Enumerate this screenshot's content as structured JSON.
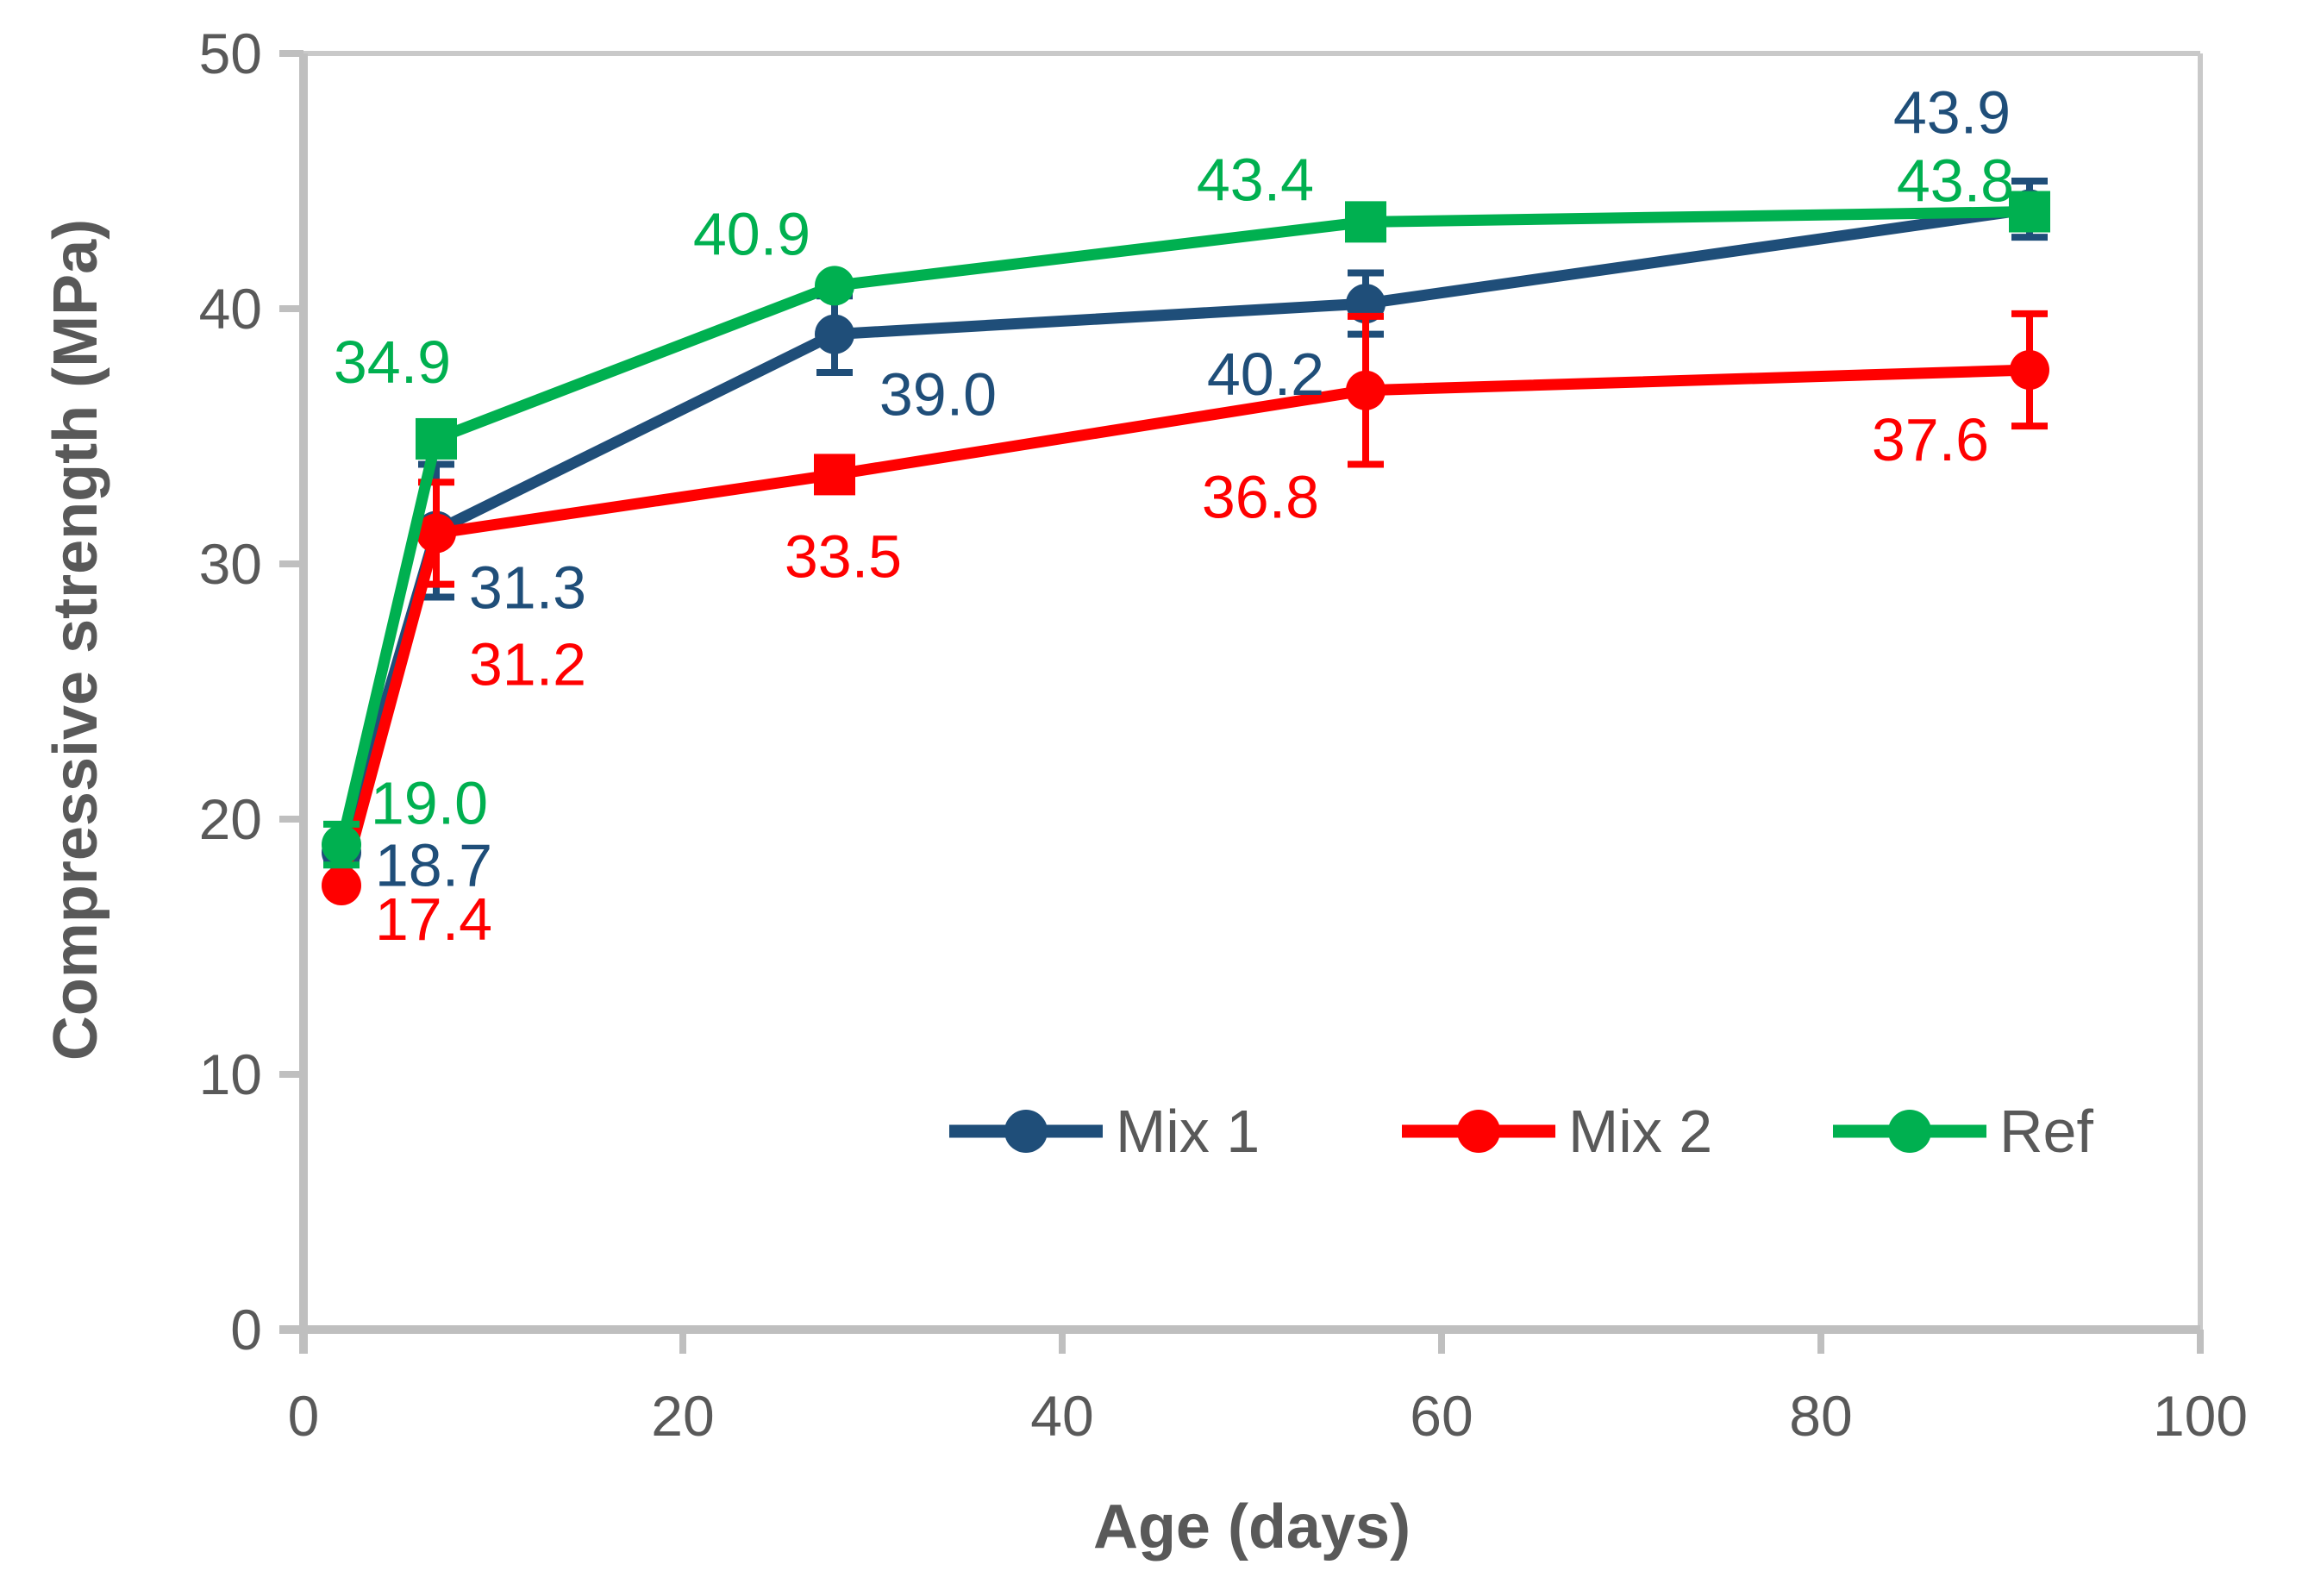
{
  "chart_data": {
    "type": "line",
    "title": "",
    "xlabel": "Age (days)",
    "ylabel": "Compressive strength (MPa)",
    "x": [
      2,
      7,
      28,
      56,
      91
    ],
    "xlim": [
      0,
      100
    ],
    "ylim": [
      0,
      50
    ],
    "x_ticks": [
      0,
      20,
      40,
      60,
      80,
      100
    ],
    "y_ticks": [
      0,
      10,
      20,
      30,
      40,
      50
    ],
    "grid": false,
    "legend_position": "inside-bottom-center",
    "series": [
      {
        "name": "Mix 1",
        "color": "#1F4E79",
        "values": [
          18.7,
          31.3,
          39.0,
          40.2,
          43.9
        ],
        "data_labels": [
          "18.7",
          "31.3",
          "39.0",
          "40.2",
          "43.9"
        ],
        "error_bars": [
          0.45,
          2.6,
          1.5,
          1.2,
          1.1
        ],
        "markers": [
          "circle",
          "circle",
          "circle",
          "circle",
          "circle"
        ],
        "label_offsets": [
          [
            107,
            15
          ],
          [
            106,
            66
          ],
          [
            120,
            70
          ],
          [
            -116,
            82
          ],
          [
            -90,
            -112
          ]
        ]
      },
      {
        "name": "Mix 2",
        "color": "#FF0000",
        "values": [
          17.4,
          31.2,
          33.5,
          36.8,
          37.6
        ],
        "data_labels": [
          "17.4",
          "31.2",
          "33.5",
          "36.8",
          "37.6"
        ],
        "error_bars": [
          0,
          2.0,
          0,
          2.9,
          2.2
        ],
        "markers": [
          "circle",
          "circle",
          "square",
          "circle",
          "circle"
        ],
        "label_offsets": [
          [
            107,
            39
          ],
          [
            106,
            152
          ],
          [
            10,
            95
          ],
          [
            -122,
            124
          ],
          [
            -115,
            81
          ]
        ]
      },
      {
        "name": "Ref",
        "color": "#00B050",
        "values": [
          19.0,
          34.9,
          40.9,
          43.4,
          43.8
        ],
        "data_labels": [
          "19.0",
          "34.9",
          "40.9",
          "43.4",
          "43.8"
        ],
        "error_bars": [
          0.8,
          0,
          0,
          0,
          0
        ],
        "markers": [
          "circle",
          "square",
          "circle",
          "square",
          "square"
        ],
        "label_offsets": [
          [
            102,
            -48
          ],
          [
            -51,
            -89
          ],
          [
            -96,
            -60
          ],
          [
            -128,
            -49
          ],
          [
            -86,
            -36
          ]
        ]
      }
    ],
    "legend_entries": [
      "Mix 1",
      "Mix 2",
      "Ref"
    ]
  },
  "styles": {
    "background": "#FFFFFF",
    "axis_color": "#BFBFBF",
    "plot_border_color": "#C9C9C9",
    "tick_label_color": "#595959",
    "axis_title_color": "#595959",
    "legend_text_color": "#595959"
  }
}
